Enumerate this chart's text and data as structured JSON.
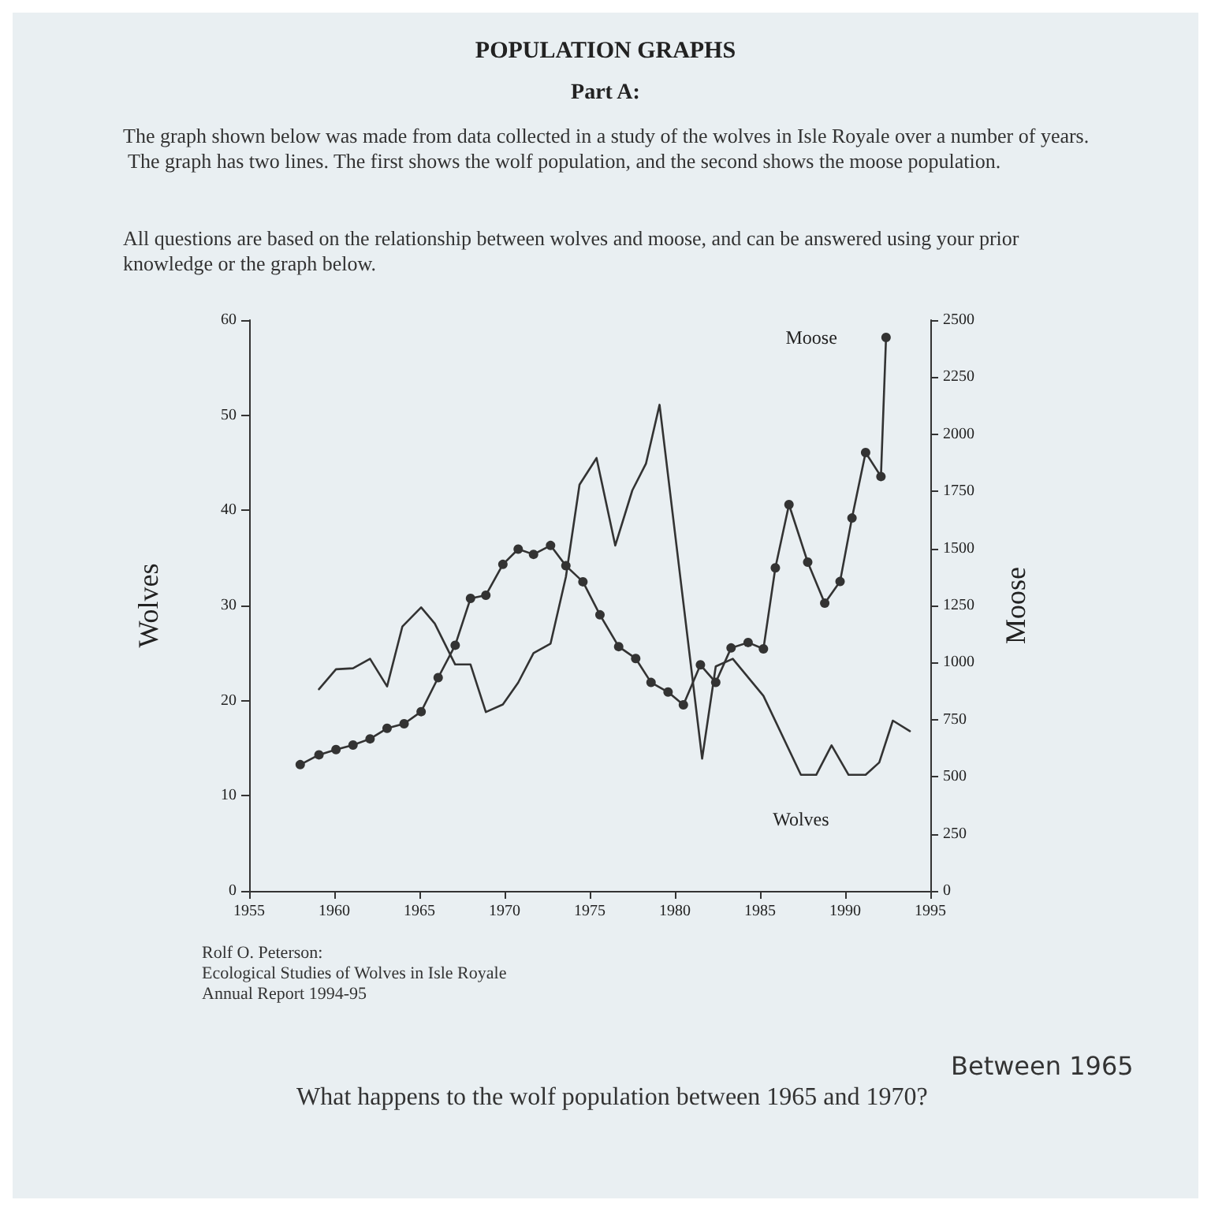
{
  "chart_data": {
    "type": "line",
    "title": "POPULATION GRAPHS",
    "subtitle": "Part A:",
    "annotations": [
      "The graph shown below was made from data collected in a study of the wolves in Isle Royale over a number of years.   The graph has two lines. The first shows the wolf population, and the second shows the moose population.",
      "All questions are based on the relationship between wolves and moose, and can be answered using your prior knowledge or the graph below.",
      "Rolf O. Peterson:\nEcological Studies of Wolves in Isle Royale\nAnnual Report 1994-95",
      "What happens to the wolf population between 1965 and 1970?",
      "Between 1965"
    ],
    "ylabel": "Wolves",
    "y2label": "Moose",
    "xlim": [
      1955,
      1995
    ],
    "xticks": [
      1955,
      1960,
      1965,
      1970,
      1975,
      1980,
      1985,
      1990,
      1995
    ],
    "ylim": [
      0,
      60
    ],
    "yticks": [
      0,
      10,
      20,
      30,
      40,
      50,
      60
    ],
    "y2lim": [
      0,
      2500
    ],
    "y2ticks": [
      0,
      250,
      500,
      750,
      1000,
      1250,
      1500,
      1750,
      2000,
      2250,
      2500
    ],
    "grid": false,
    "legend": false,
    "series": [
      {
        "name": "Wolves",
        "color": "#333333",
        "marker": "none",
        "x": [
          1959.1,
          1960.1,
          1961.1,
          1962.1,
          1963.1,
          1964.0,
          1965.1,
          1965.9,
          1967.1,
          1968.0,
          1968.9,
          1969.9,
          1970.8,
          1971.7,
          1972.7,
          1973.6,
          1974.4,
          1975.4,
          1976.5,
          1977.5,
          1978.3,
          1979.1,
          1981.6,
          1982.4,
          1983.4,
          1985.2,
          1987.4,
          1988.3,
          1989.2,
          1990.2,
          1991.2,
          1992.0,
          1992.8,
          1993.8
        ],
        "values": [
          21.2,
          23.3,
          23.4,
          24.4,
          21.5,
          27.8,
          29.8,
          28.1,
          23.8,
          23.8,
          18.8,
          19.6,
          21.9,
          25.0,
          26.0,
          33.0,
          42.7,
          45.5,
          36.3,
          42.1,
          44.9,
          51.1,
          13.9,
          23.6,
          24.4,
          20.5,
          12.2,
          12.2,
          15.3,
          12.2,
          12.2,
          13.5,
          17.9,
          16.8
        ]
      },
      {
        "name": "Moose",
        "color": "#333333",
        "marker": "circle",
        "axis": "y2",
        "x": [
          1958.0,
          1959.1,
          1960.1,
          1961.1,
          1962.1,
          1963.1,
          1964.1,
          1965.1,
          1966.1,
          1967.1,
          1968.0,
          1968.9,
          1969.9,
          1970.8,
          1971.7,
          1972.7,
          1973.6,
          1974.6,
          1975.6,
          1976.7,
          1977.7,
          1978.6,
          1979.6,
          1980.5,
          1981.5,
          1982.4,
          1983.3,
          1984.3,
          1985.2,
          1985.9,
          1986.7,
          1987.8,
          1988.8,
          1989.7,
          1990.4,
          1991.2,
          1992.1,
          1992.4
        ],
        "values": [
          553,
          596,
          619,
          639,
          666,
          712,
          732,
          785,
          934,
          1076,
          1281,
          1295,
          1430,
          1497,
          1474,
          1513,
          1424,
          1354,
          1209,
          1070,
          1018,
          913,
          871,
          815,
          990,
          913,
          1064,
          1088,
          1060,
          1415,
          1692,
          1440,
          1260,
          1355,
          1633,
          1920,
          1815,
          2424
        ]
      }
    ]
  }
}
